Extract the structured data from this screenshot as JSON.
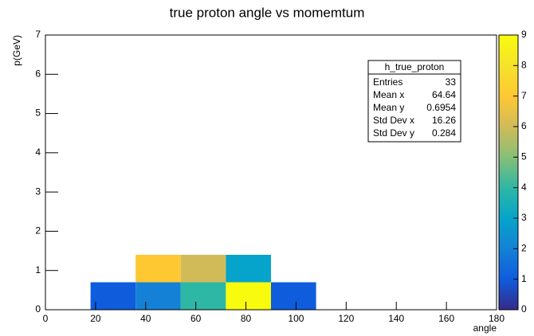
{
  "chart_data": {
    "type": "heatmap",
    "title": "true proton angle vs momemtum",
    "x_label": "angle",
    "y_label": "p(GeV)",
    "xlim": [
      0,
      180
    ],
    "ylim": [
      0,
      7
    ],
    "xticks": [
      0,
      20,
      40,
      60,
      80,
      100,
      120,
      140,
      160,
      180
    ],
    "yticks": [
      0,
      1,
      2,
      3,
      4,
      5,
      6,
      7
    ],
    "zlim": [
      0,
      9
    ],
    "zticks": [
      0,
      1,
      2,
      3,
      4,
      5,
      6,
      7,
      8,
      9
    ],
    "palette": [
      "#352a87",
      "#0f5cdd",
      "#1481d6",
      "#06a4ca",
      "#2eb7a4",
      "#87bf77",
      "#d1bb59",
      "#fec832",
      "#f5e22a",
      "#f9fb0e"
    ],
    "cells": [
      {
        "x": [
          18,
          36
        ],
        "y": [
          0,
          0.7
        ],
        "value": 1
      },
      {
        "x": [
          36,
          54
        ],
        "y": [
          0,
          0.7
        ],
        "value": 2
      },
      {
        "x": [
          54,
          72
        ],
        "y": [
          0,
          0.7
        ],
        "value": 4
      },
      {
        "x": [
          72,
          90
        ],
        "y": [
          0,
          0.7
        ],
        "value": 9
      },
      {
        "x": [
          90,
          108
        ],
        "y": [
          0,
          0.7
        ],
        "value": 1
      },
      {
        "x": [
          36,
          54
        ],
        "y": [
          0.7,
          1.4
        ],
        "value": 7
      },
      {
        "x": [
          54,
          72
        ],
        "y": [
          0.7,
          1.4
        ],
        "value": 6
      },
      {
        "x": [
          72,
          90
        ],
        "y": [
          0.7,
          1.4
        ],
        "value": 3
      }
    ],
    "stats": {
      "title": "h_true_proton",
      "rows": [
        [
          "Entries",
          33
        ],
        [
          "Mean x",
          64.64
        ],
        [
          "Mean y",
          0.6954
        ],
        [
          "Std Dev x",
          16.26
        ],
        [
          "Std Dev y",
          0.284
        ]
      ]
    }
  }
}
